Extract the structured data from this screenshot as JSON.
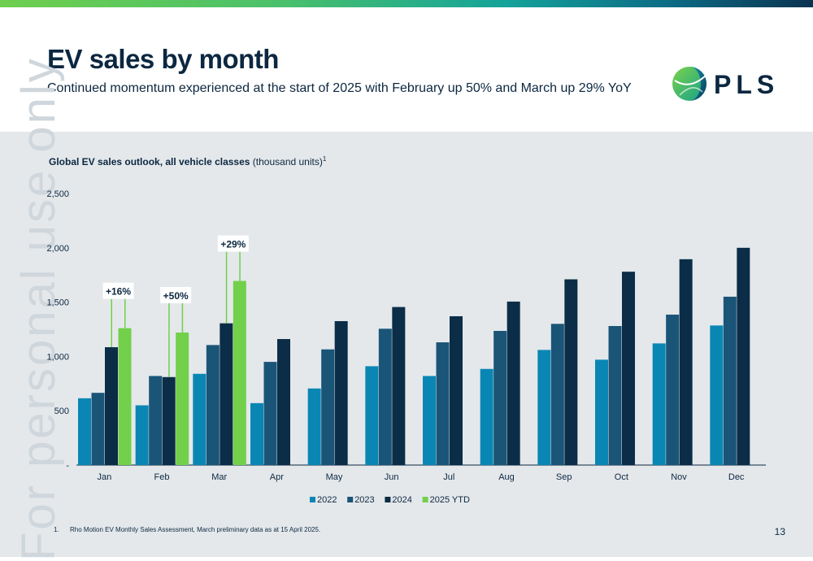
{
  "header": {
    "title": "EV sales by month",
    "subtitle": "Continued momentum experienced at the start of 2025 with February up 50% and March up 29% YoY",
    "logo_text": "PLS"
  },
  "watermark": "For personal use only",
  "chart_title": {
    "bold": "Global EV sales outlook, all vehicle classes",
    "units": " (thousand units)",
    "sup": "1"
  },
  "colors": {
    "s2022": "#0a86b4",
    "s2023": "#1a5578",
    "s2024": "#0b2d47",
    "s2025": "#72d04b",
    "axis": "#0c2740",
    "annotation_line": "#72d04b"
  },
  "chart_data": {
    "type": "bar",
    "categories": [
      "Jan",
      "Feb",
      "Mar",
      "Apr",
      "May",
      "Jun",
      "Jul",
      "Aug",
      "Sep",
      "Oct",
      "Nov",
      "Dec"
    ],
    "series": [
      {
        "name": "2022",
        "values": [
          615,
          550,
          840,
          570,
          705,
          910,
          820,
          885,
          1060,
          970,
          1120,
          1285
        ]
      },
      {
        "name": "2023",
        "values": [
          665,
          820,
          1105,
          950,
          1065,
          1255,
          1130,
          1235,
          1300,
          1280,
          1385,
          1550
        ]
      },
      {
        "name": "2024",
        "values": [
          1085,
          810,
          1305,
          1160,
          1325,
          1455,
          1370,
          1505,
          1710,
          1780,
          1895,
          2000
        ]
      },
      {
        "name": "2025 YTD",
        "values": [
          1260,
          1220,
          1695,
          null,
          null,
          null,
          null,
          null,
          null,
          null,
          null,
          null
        ]
      }
    ],
    "y_ticks": [
      "-",
      "500",
      "1,000",
      "1,500",
      "2,000",
      "2,500"
    ],
    "ylim": [
      0,
      2500
    ],
    "annotations": [
      {
        "category": "Jan",
        "label": "+16%"
      },
      {
        "category": "Feb",
        "label": "+50%"
      },
      {
        "category": "Mar",
        "label": "+29%"
      }
    ],
    "legend_position": "bottom-center",
    "grid": false
  },
  "footnote": {
    "number": "1.",
    "text": "Rho Motion EV Monthly Sales Assessment, March preliminary data as at 15 April 2025."
  },
  "page_number": "13"
}
